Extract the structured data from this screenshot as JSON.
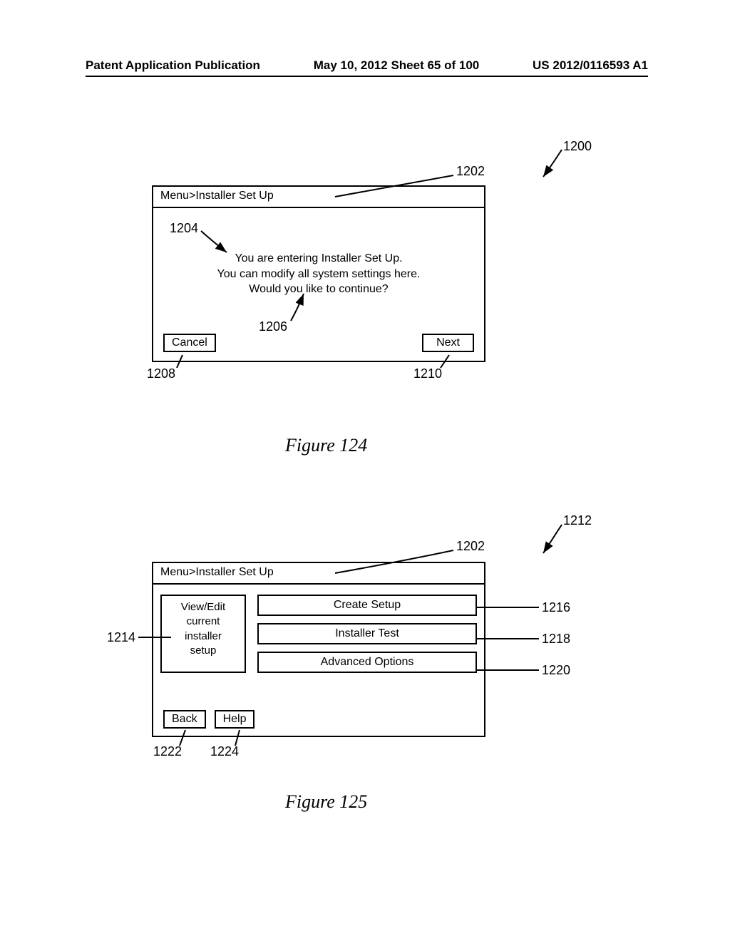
{
  "header": {
    "left": "Patent Application Publication",
    "center": "May 10, 2012  Sheet 65 of 100",
    "right": "US 2012/0116593 A1"
  },
  "figure124": {
    "breadcrumb": "Menu>Installer Set Up",
    "message_line1": "You are entering Installer Set Up.",
    "message_line2": "You can modify all system settings here.",
    "message_line3": "Would you like to continue?",
    "cancel": "Cancel",
    "next": "Next",
    "caption": "Figure 124",
    "refs": {
      "r1200": "1200",
      "r1202": "1202",
      "r1204": "1204",
      "r1206": "1206",
      "r1208": "1208",
      "r1210": "1210"
    }
  },
  "figure125": {
    "breadcrumb": "Menu>Installer Set Up",
    "view_edit": "View/Edit current installer setup",
    "create_setup": "Create Setup",
    "installer_test": "Installer Test",
    "advanced_options": "Advanced Options",
    "back": "Back",
    "help": "Help",
    "caption": "Figure 125",
    "refs": {
      "r1212": "1212",
      "r1202": "1202",
      "r1214": "1214",
      "r1216": "1216",
      "r1218": "1218",
      "r1220": "1220",
      "r1222": "1222",
      "r1224": "1224"
    }
  }
}
